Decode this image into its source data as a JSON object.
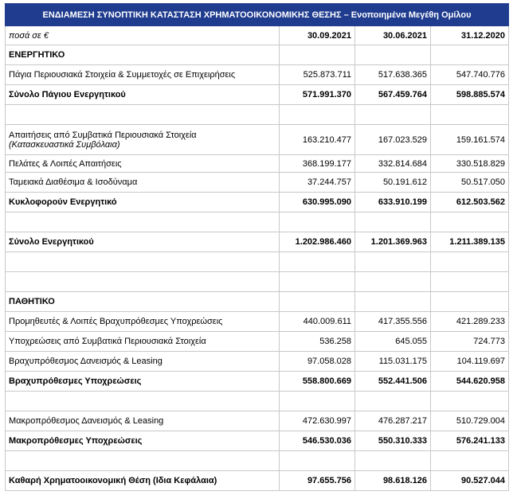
{
  "header": {
    "title": "ΕΝΔΙΑΜΕΣΗ ΣΥΝΟΠΤΙΚΗ ΚΑΤΑΣΤΑΣΗ ΧΡΗΜΑΤΟΟΙΚΟΝΟΜΙΚΗΣ ΘΕΣΗΣ – Ενοποιημένα Μεγέθη Ομίλου"
  },
  "table": {
    "columns": [
      "ποσά σε €",
      "30.09.2021",
      "30.06.2021",
      "31.12.2020"
    ],
    "rows": [
      {
        "label": "ΕΝΕΡΓΗΤΙΚΟ"
      },
      {
        "label": "Πάγια Περιουσιακά Στοιχεία & Συμμετοχές σε Επιχειρήσεις",
        "values": [
          "525.873.711",
          "517.638.365",
          "547.740.776"
        ]
      },
      {
        "label": "Σύνολο Πάγιου Ενεργητικού",
        "values": [
          "571.991.370",
          "567.459.764",
          "598.885.574"
        ]
      },
      {
        "label": "Απαιτήσεις από Συμβατικά Περιουσιακά Στοιχεία",
        "sublabel": "(Κατασκευαστικά Συμβόλαια)",
        "values": [
          "163.210.477",
          "167.023.529",
          "159.161.574"
        ]
      },
      {
        "label": "Πελάτες & Λοιπές Απαιτήσεις",
        "values": [
          "368.199.177",
          "332.814.684",
          "330.518.829"
        ]
      },
      {
        "label": "Ταμειακά Διαθέσιμα & Ισοδύναμα",
        "values": [
          "37.244.757",
          "50.191.612",
          "50.517.050"
        ]
      },
      {
        "label": "Κυκλοφορούν Ενεργητικό",
        "values": [
          "630.995.090",
          "633.910.199",
          "612.503.562"
        ]
      },
      {
        "label": "Σύνολο Ενεργητικού",
        "values": [
          "1.202.986.460",
          "1.201.369.963",
          "1.211.389.135"
        ]
      },
      {
        "label": "ΠΑΘΗΤΙΚΟ"
      },
      {
        "label": "Προμηθευτές & Λοιπές Βραχυπρόθεσμες Υποχρεώσεις",
        "values": [
          "440.009.611",
          "417.355.556",
          "421.289.233"
        ]
      },
      {
        "label": "Υποχρεώσεις από Συμβατικά Περιουσιακά Στοιχεία",
        "values": [
          "536.258",
          "645.055",
          "724.773"
        ]
      },
      {
        "label": "Βραχυπρόθεσμος Δανεισμός & Leasing",
        "values": [
          "97.058.028",
          "115.031.175",
          "104.119.697"
        ]
      },
      {
        "label": "Βραχυπρόθεσμες Υποχρεώσεις",
        "values": [
          "558.800.669",
          "552.441.506",
          "544.620.958"
        ]
      },
      {
        "label": "Μακροπρόθεσμος Δανεισμός & Leasing",
        "values": [
          "472.630.997",
          "476.287.217",
          "510.729.004"
        ]
      },
      {
        "label": "Μακροπρόθεσμες Υποχρεώσεις",
        "values": [
          "546.530.036",
          "550.310.333",
          "576.241.133"
        ]
      },
      {
        "label": "Καθαρή Χρηματοοικονομική Θέση (Ιδια Κεφάλαια)",
        "values": [
          "97.655.756",
          "98.618.126",
          "90.527.044"
        ]
      }
    ]
  }
}
